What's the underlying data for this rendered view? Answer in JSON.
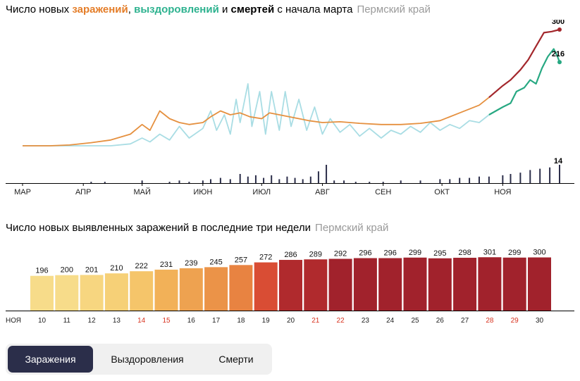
{
  "header": {
    "title_parts": [
      "Число новых ",
      "заражений",
      ", ",
      "выздоровлений",
      " и ",
      "смертей",
      " с начала марта"
    ],
    "region": "Пермский край"
  },
  "bar_section": {
    "title": "Число новых выявленных заражений в последние три недели",
    "region": "Пермский край"
  },
  "tabs": {
    "infections": "Заражения",
    "recoveries": "Выздоровления",
    "deaths": "Смерти",
    "active": "infections"
  },
  "colors": {
    "infections": "#e5903f",
    "infections_recent": "#a3272c",
    "recoveries": "#a9dde4",
    "recoveries_recent": "#27a882",
    "deaths": "#2c2e4a"
  },
  "chart_data": [
    {
      "type": "line",
      "x_tick_labels": [
        "МАР",
        "АПР",
        "МАЙ",
        "ИЮН",
        "ИЮЛ",
        "АВГ",
        "СЕН",
        "ОКТ",
        "НОЯ"
      ],
      "x_range": [
        "2020-03-01",
        "2020-11-30"
      ],
      "series": [
        {
          "name": "заражений",
          "end_label": "300",
          "points": [
            [
              "2020-03-01",
              0
            ],
            [
              "2020-03-15",
              0
            ],
            [
              "2020-03-25",
              2
            ],
            [
              "2020-04-05",
              8
            ],
            [
              "2020-04-15",
              15
            ],
            [
              "2020-04-25",
              30
            ],
            [
              "2020-05-01",
              55
            ],
            [
              "2020-05-05",
              40
            ],
            [
              "2020-05-10",
              90
            ],
            [
              "2020-05-15",
              70
            ],
            [
              "2020-05-20",
              60
            ],
            [
              "2020-05-25",
              55
            ],
            [
              "2020-06-01",
              60
            ],
            [
              "2020-06-05",
              75
            ],
            [
              "2020-06-10",
              90
            ],
            [
              "2020-06-15",
              80
            ],
            [
              "2020-06-20",
              85
            ],
            [
              "2020-06-25",
              75
            ],
            [
              "2020-07-01",
              70
            ],
            [
              "2020-07-05",
              85
            ],
            [
              "2020-07-10",
              80
            ],
            [
              "2020-07-15",
              75
            ],
            [
              "2020-07-20",
              70
            ],
            [
              "2020-07-25",
              65
            ],
            [
              "2020-08-01",
              60
            ],
            [
              "2020-08-10",
              62
            ],
            [
              "2020-08-20",
              58
            ],
            [
              "2020-08-31",
              55
            ],
            [
              "2020-09-10",
              55
            ],
            [
              "2020-09-20",
              58
            ],
            [
              "2020-09-30",
              65
            ],
            [
              "2020-10-10",
              85
            ],
            [
              "2020-10-20",
              105
            ],
            [
              "2020-10-25",
              125
            ],
            [
              "2020-11-01",
              155
            ],
            [
              "2020-11-05",
              170
            ],
            [
              "2020-11-10",
              196
            ],
            [
              "2020-11-14",
              222
            ],
            [
              "2020-11-18",
              257
            ],
            [
              "2020-11-22",
              292
            ],
            [
              "2020-11-26",
              295
            ],
            [
              "2020-11-30",
              300
            ]
          ]
        },
        {
          "name": "выздоровлений",
          "end_label": "216",
          "points": [
            [
              "2020-03-01",
              0
            ],
            [
              "2020-04-15",
              0
            ],
            [
              "2020-04-25",
              5
            ],
            [
              "2020-05-01",
              20
            ],
            [
              "2020-05-05",
              10
            ],
            [
              "2020-05-10",
              30
            ],
            [
              "2020-05-15",
              15
            ],
            [
              "2020-05-20",
              50
            ],
            [
              "2020-05-25",
              20
            ],
            [
              "2020-06-01",
              45
            ],
            [
              "2020-06-05",
              90
            ],
            [
              "2020-06-08",
              40
            ],
            [
              "2020-06-12",
              80
            ],
            [
              "2020-06-15",
              30
            ],
            [
              "2020-06-18",
              120
            ],
            [
              "2020-06-20",
              60
            ],
            [
              "2020-06-24",
              160
            ],
            [
              "2020-06-26",
              50
            ],
            [
              "2020-06-30",
              140
            ],
            [
              "2020-07-03",
              30
            ],
            [
              "2020-07-06",
              140
            ],
            [
              "2020-07-10",
              40
            ],
            [
              "2020-07-13",
              140
            ],
            [
              "2020-07-16",
              50
            ],
            [
              "2020-07-20",
              120
            ],
            [
              "2020-07-24",
              40
            ],
            [
              "2020-07-28",
              100
            ],
            [
              "2020-08-01",
              30
            ],
            [
              "2020-08-05",
              70
            ],
            [
              "2020-08-10",
              35
            ],
            [
              "2020-08-15",
              55
            ],
            [
              "2020-08-20",
              25
            ],
            [
              "2020-08-25",
              45
            ],
            [
              "2020-08-31",
              20
            ],
            [
              "2020-09-05",
              40
            ],
            [
              "2020-09-10",
              30
            ],
            [
              "2020-09-15",
              50
            ],
            [
              "2020-09-20",
              35
            ],
            [
              "2020-09-25",
              60
            ],
            [
              "2020-09-30",
              40
            ],
            [
              "2020-10-05",
              55
            ],
            [
              "2020-10-10",
              45
            ],
            [
              "2020-10-15",
              65
            ],
            [
              "2020-10-20",
              60
            ],
            [
              "2020-10-25",
              80
            ],
            [
              "2020-11-01",
              100
            ],
            [
              "2020-11-05",
              110
            ],
            [
              "2020-11-08",
              140
            ],
            [
              "2020-11-12",
              150
            ],
            [
              "2020-11-15",
              170
            ],
            [
              "2020-11-18",
              160
            ],
            [
              "2020-11-21",
              200
            ],
            [
              "2020-11-24",
              230
            ],
            [
              "2020-11-27",
              250
            ],
            [
              "2020-11-29",
              230
            ],
            [
              "2020-11-30",
              216
            ]
          ]
        },
        {
          "name": "смертей",
          "end_label": "14",
          "bars": [
            [
              "2020-04-05",
              1
            ],
            [
              "2020-04-12",
              1
            ],
            [
              "2020-05-01",
              2
            ],
            [
              "2020-05-15",
              1
            ],
            [
              "2020-05-20",
              2
            ],
            [
              "2020-05-25",
              1
            ],
            [
              "2020-06-01",
              2
            ],
            [
              "2020-06-05",
              3
            ],
            [
              "2020-06-10",
              4
            ],
            [
              "2020-06-15",
              3
            ],
            [
              "2020-06-20",
              7
            ],
            [
              "2020-06-24",
              5
            ],
            [
              "2020-06-28",
              6
            ],
            [
              "2020-07-02",
              4
            ],
            [
              "2020-07-06",
              6
            ],
            [
              "2020-07-10",
              3
            ],
            [
              "2020-07-14",
              5
            ],
            [
              "2020-07-18",
              4
            ],
            [
              "2020-07-22",
              3
            ],
            [
              "2020-07-26",
              5
            ],
            [
              "2020-07-30",
              9
            ],
            [
              "2020-08-03",
              14
            ],
            [
              "2020-08-07",
              2
            ],
            [
              "2020-08-12",
              2
            ],
            [
              "2020-08-18",
              1
            ],
            [
              "2020-08-25",
              1
            ],
            [
              "2020-09-01",
              1
            ],
            [
              "2020-09-10",
              2
            ],
            [
              "2020-09-20",
              2
            ],
            [
              "2020-09-30",
              3
            ],
            [
              "2020-10-05",
              3
            ],
            [
              "2020-10-10",
              4
            ],
            [
              "2020-10-15",
              4
            ],
            [
              "2020-10-20",
              5
            ],
            [
              "2020-10-25",
              5
            ],
            [
              "2020-11-01",
              6
            ],
            [
              "2020-11-05",
              7
            ],
            [
              "2020-11-10",
              8
            ],
            [
              "2020-11-15",
              10
            ],
            [
              "2020-11-20",
              11
            ],
            [
              "2020-11-25",
              12
            ],
            [
              "2020-11-30",
              14
            ]
          ]
        }
      ]
    },
    {
      "type": "bar",
      "month_label": "НОЯ",
      "categories": [
        "10",
        "11",
        "12",
        "13",
        "14",
        "15",
        "16",
        "17",
        "18",
        "19",
        "20",
        "21",
        "22",
        "23",
        "24",
        "25",
        "26",
        "27",
        "28",
        "29",
        "30"
      ],
      "values": [
        196,
        200,
        201,
        210,
        222,
        231,
        239,
        245,
        257,
        272,
        286,
        289,
        292,
        296,
        296,
        299,
        295,
        298,
        301,
        299,
        300
      ],
      "weekend_days": [
        "14",
        "15",
        "21",
        "22",
        "28",
        "29"
      ],
      "ylim": [
        0,
        310
      ]
    }
  ]
}
